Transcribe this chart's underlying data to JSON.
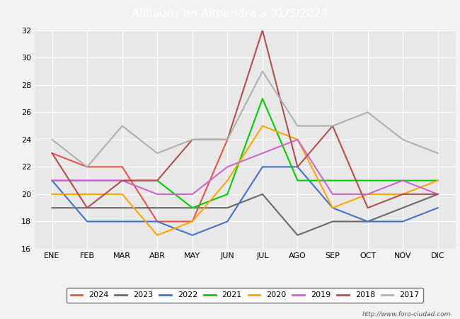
{
  "title": "Afiliados en Almendra a 31/5/2024",
  "title_color": "#ffffff",
  "header_bg": "#4472c4",
  "months": [
    "ENE",
    "FEB",
    "MAR",
    "ABR",
    "MAY",
    "JUN",
    "JUL",
    "AGO",
    "SEP",
    "OCT",
    "NOV",
    "DIC"
  ],
  "ylim": [
    16,
    32
  ],
  "yticks": [
    16,
    18,
    20,
    22,
    24,
    26,
    28,
    30,
    32
  ],
  "series": {
    "2024": {
      "color": "#e8534a",
      "data": [
        23,
        22,
        22,
        18,
        18,
        24,
        null,
        null,
        null,
        null,
        null,
        null
      ]
    },
    "2023": {
      "color": "#696969",
      "data": [
        19,
        19,
        19,
        19,
        19,
        19,
        20,
        17,
        18,
        18,
        19,
        20
      ]
    },
    "2022": {
      "color": "#4472c4",
      "data": [
        21,
        18,
        18,
        18,
        17,
        18,
        22,
        22,
        19,
        18,
        18,
        19
      ]
    },
    "2021": {
      "color": "#00cc00",
      "data": [
        21,
        21,
        21,
        21,
        19,
        20,
        27,
        21,
        21,
        21,
        21,
        21
      ]
    },
    "2020": {
      "color": "#ffa500",
      "data": [
        20,
        20,
        20,
        17,
        18,
        21,
        25,
        24,
        19,
        20,
        20,
        21
      ]
    },
    "2019": {
      "color": "#cc66cc",
      "data": [
        21,
        21,
        21,
        20,
        20,
        22,
        23,
        24,
        20,
        20,
        21,
        20
      ]
    },
    "2018": {
      "color": "#b05050",
      "data": [
        23,
        19,
        21,
        21,
        24,
        24,
        32,
        22,
        25,
        19,
        20,
        20
      ]
    },
    "2017": {
      "color": "#b0b0b0",
      "data": [
        24,
        22,
        25,
        23,
        24,
        24,
        29,
        25,
        25,
        26,
        24,
        23
      ]
    }
  },
  "url": "http://www.foro-ciudad.com",
  "background_color": "#f2f2f2",
  "plot_bg": "#e8e8e8",
  "grid_color": "#ffffff"
}
